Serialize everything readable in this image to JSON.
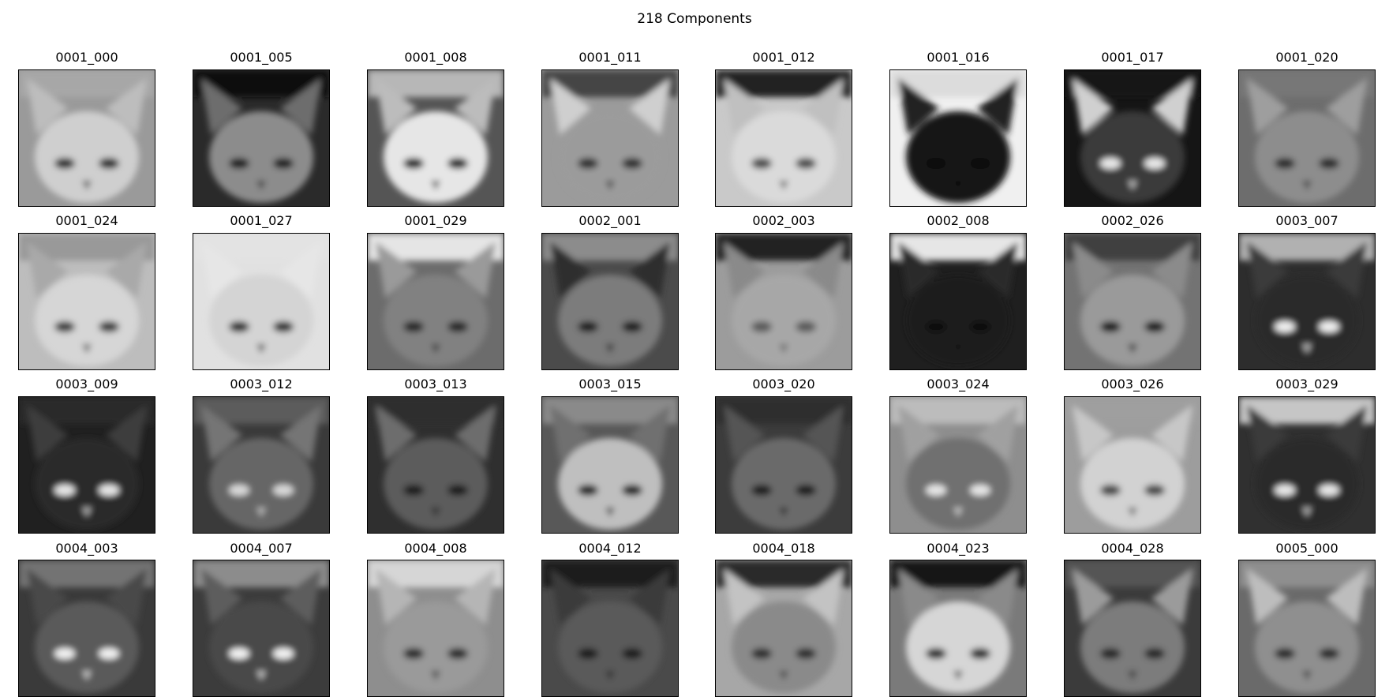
{
  "figure": {
    "title": "218 Components"
  },
  "components": [
    {
      "label": "0001_000",
      "bg": "#9a9a9a",
      "face": "#cfcfcf",
      "ear": "#bdbdbd",
      "eye": "#2a2a2a",
      "top": "#a7a7a7"
    },
    {
      "label": "0001_005",
      "bg": "#2a2a2a",
      "face": "#8c8c8c",
      "ear": "#6d6d6d",
      "eye": "#1e1e1e",
      "top": "#111111"
    },
    {
      "label": "0001_008",
      "bg": "#555555",
      "face": "#e6e6e6",
      "ear": "#bcbcbc",
      "eye": "#222222",
      "top": "#b7b7b7"
    },
    {
      "label": "0001_011",
      "bg": "#9b9b9b",
      "face": "#9b9b9b",
      "ear": "#cfcfcf",
      "eye": "#2e2e2e",
      "top": "#444444"
    },
    {
      "label": "0001_012",
      "bg": "#c9c9c9",
      "face": "#dadada",
      "ear": "#c0c0c0",
      "eye": "#4a4a4a",
      "top": "#202020"
    },
    {
      "label": "0001_016",
      "bg": "#f0f0f0",
      "face": "#141414",
      "ear": "#222222",
      "eye": "#080808",
      "top": "#dcdcdc"
    },
    {
      "label": "0001_017",
      "bg": "#151515",
      "face": "#3b3b3b",
      "ear": "#d0d0d0",
      "eye": "#e9e9e9",
      "top": "#171717"
    },
    {
      "label": "0001_020",
      "bg": "#6d6d6d",
      "face": "#8d8d8d",
      "ear": "#9e9e9e",
      "eye": "#2a2a2a",
      "top": "#777777"
    },
    {
      "label": "0001_024",
      "bg": "#bdbdbd",
      "face": "#d6d6d6",
      "ear": "#a9a9a9",
      "eye": "#3b3b3b",
      "top": "#999999"
    },
    {
      "label": "0001_027",
      "bg": "#e1e1e1",
      "face": "#d4d4d4",
      "ear": "#e6e6e6",
      "eye": "#2e2e2e",
      "top": "#e3e3e3"
    },
    {
      "label": "0001_029",
      "bg": "#6c6c6c",
      "face": "#818181",
      "ear": "#9a9a9a",
      "eye": "#272727",
      "top": "#e5e5e5"
    },
    {
      "label": "0002_001",
      "bg": "#4b4b4b",
      "face": "#7b7b7b",
      "ear": "#2d2d2d",
      "eye": "#1c1c1c",
      "top": "#8c8c8c"
    },
    {
      "label": "0002_003",
      "bg": "#9c9c9c",
      "face": "#a7a7a7",
      "ear": "#8a8a8a",
      "eye": "#5a5a5a",
      "top": "#202020"
    },
    {
      "label": "0002_008",
      "bg": "#1f1f1f",
      "face": "#1a1a1a",
      "ear": "#2a2a2a",
      "eye": "#111111",
      "top": "#e6e6e6"
    },
    {
      "label": "0002_026",
      "bg": "#737373",
      "face": "#9a9a9a",
      "ear": "#8b8b8b",
      "eye": "#151515",
      "top": "#3f3f3f"
    },
    {
      "label": "0003_007",
      "bg": "#2d2d2d",
      "face": "#2a2a2a",
      "ear": "#3a3a3a",
      "eye": "#f0f0f0",
      "top": "#b1b1b1"
    },
    {
      "label": "0003_009",
      "bg": "#202020",
      "face": "#2a2a2a",
      "ear": "#3d3d3d",
      "eye": "#e7e7e7",
      "top": "#2c2c2c"
    },
    {
      "label": "0003_012",
      "bg": "#3a3a3a",
      "face": "#666666",
      "ear": "#747474",
      "eye": "#d9d9d9",
      "top": "#5b5b5b"
    },
    {
      "label": "0003_013",
      "bg": "#2f2f2f",
      "face": "#5b5b5b",
      "ear": "#6d6d6d",
      "eye": "#1d1d1d",
      "top": "#2e2e2e"
    },
    {
      "label": "0003_015",
      "bg": "#585858",
      "face": "#bfbfbf",
      "ear": "#6f6f6f",
      "eye": "#222222",
      "top": "#8a8a8a"
    },
    {
      "label": "0003_020",
      "bg": "#3c3c3c",
      "face": "#6b6b6b",
      "ear": "#555555",
      "eye": "#1a1a1a",
      "top": "#2e2e2e"
    },
    {
      "label": "0003_024",
      "bg": "#8e8e8e",
      "face": "#6f6f6f",
      "ear": "#a0a0a0",
      "eye": "#e6e6e6",
      "top": "#bcbcbc"
    },
    {
      "label": "0003_026",
      "bg": "#9d9d9d",
      "face": "#d2d2d2",
      "ear": "#c7c7c7",
      "eye": "#444444",
      "top": "#9f9f9f"
    },
    {
      "label": "0003_029",
      "bg": "#303030",
      "face": "#2a2a2a",
      "ear": "#3a3a3a",
      "eye": "#e8e8e8",
      "top": "#c6c6c6"
    },
    {
      "label": "0004_003",
      "bg": "#3a3a3a",
      "face": "#5a5a5a",
      "ear": "#4a4a4a",
      "eye": "#f1f1f1",
      "top": "#737373"
    },
    {
      "label": "0004_007",
      "bg": "#3c3c3c",
      "face": "#4a4a4a",
      "ear": "#5d5d5d",
      "eye": "#f2f2f2",
      "top": "#8c8c8c"
    },
    {
      "label": "0004_008",
      "bg": "#8e8e8e",
      "face": "#9a9a9a",
      "ear": "#b5b5b5",
      "eye": "#2b2b2b",
      "top": "#d6d6d6"
    },
    {
      "label": "0004_012",
      "bg": "#4a4a4a",
      "face": "#5a5a5a",
      "ear": "#3a3a3a",
      "eye": "#1f1f1f",
      "top": "#1d1d1d"
    },
    {
      "label": "0004_018",
      "bg": "#a7a7a7",
      "face": "#8a8a8a",
      "ear": "#c3c3c3",
      "eye": "#2d2d2d",
      "top": "#2a2a2a"
    },
    {
      "label": "0004_023",
      "bg": "#7a7a7a",
      "face": "#d6d6d6",
      "ear": "#8a8a8a",
      "eye": "#2a2a2a",
      "top": "#151515"
    },
    {
      "label": "0004_028",
      "bg": "#3b3b3b",
      "face": "#7b7b7b",
      "ear": "#9b9b9b",
      "eye": "#262626",
      "top": "#555555"
    },
    {
      "label": "0005_000",
      "bg": "#6a6a6a",
      "face": "#8f8f8f",
      "ear": "#bdbdbd",
      "eye": "#2a2a2a",
      "top": "#8f8f8f"
    }
  ]
}
